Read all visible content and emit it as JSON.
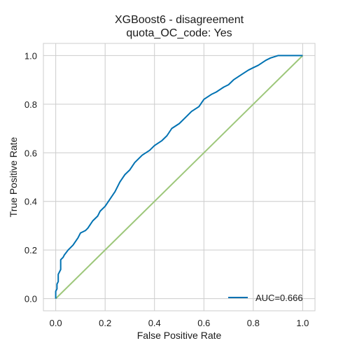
{
  "chart_data": {
    "type": "line",
    "title_lines": [
      "XGBoost6 - disagreement",
      "quota_OC_code: Yes"
    ],
    "xlabel": "False Positive Rate",
    "ylabel": "True Positive Rate",
    "xlim": [
      -0.05,
      1.05
    ],
    "ylim": [
      -0.05,
      1.05
    ],
    "xticks": [
      "0.0",
      "0.2",
      "0.4",
      "0.6",
      "0.8",
      "1.0"
    ],
    "yticks": [
      "0.0",
      "0.2",
      "0.4",
      "0.6",
      "0.8",
      "1.0"
    ],
    "grid": true,
    "legend_position": "lower right",
    "series": [
      {
        "name": "AUC=0.666",
        "color": "#0072b2",
        "x": [
          0.0,
          0.0,
          0.005,
          0.005,
          0.01,
          0.01,
          0.02,
          0.02,
          0.03,
          0.035,
          0.05,
          0.06,
          0.07,
          0.09,
          0.1,
          0.12,
          0.13,
          0.15,
          0.17,
          0.18,
          0.2,
          0.22,
          0.24,
          0.26,
          0.28,
          0.3,
          0.32,
          0.35,
          0.38,
          0.4,
          0.43,
          0.45,
          0.47,
          0.5,
          0.53,
          0.55,
          0.58,
          0.6,
          0.63,
          0.65,
          0.68,
          0.7,
          0.72,
          0.75,
          0.78,
          0.8,
          0.82,
          0.85,
          0.87,
          0.9,
          0.92,
          0.95,
          0.98,
          1.0
        ],
        "y": [
          0.0,
          0.03,
          0.04,
          0.06,
          0.07,
          0.1,
          0.12,
          0.16,
          0.17,
          0.18,
          0.2,
          0.21,
          0.22,
          0.25,
          0.27,
          0.28,
          0.29,
          0.32,
          0.34,
          0.36,
          0.38,
          0.41,
          0.44,
          0.48,
          0.51,
          0.53,
          0.56,
          0.59,
          0.61,
          0.63,
          0.65,
          0.67,
          0.7,
          0.72,
          0.75,
          0.77,
          0.79,
          0.82,
          0.84,
          0.85,
          0.87,
          0.88,
          0.9,
          0.92,
          0.94,
          0.95,
          0.96,
          0.98,
          0.99,
          1.0,
          1.0,
          1.0,
          1.0,
          1.0
        ]
      },
      {
        "name": "",
        "color": "#9dc77a",
        "x": [
          0.0,
          1.0
        ],
        "y": [
          0.0,
          1.0
        ]
      }
    ]
  }
}
